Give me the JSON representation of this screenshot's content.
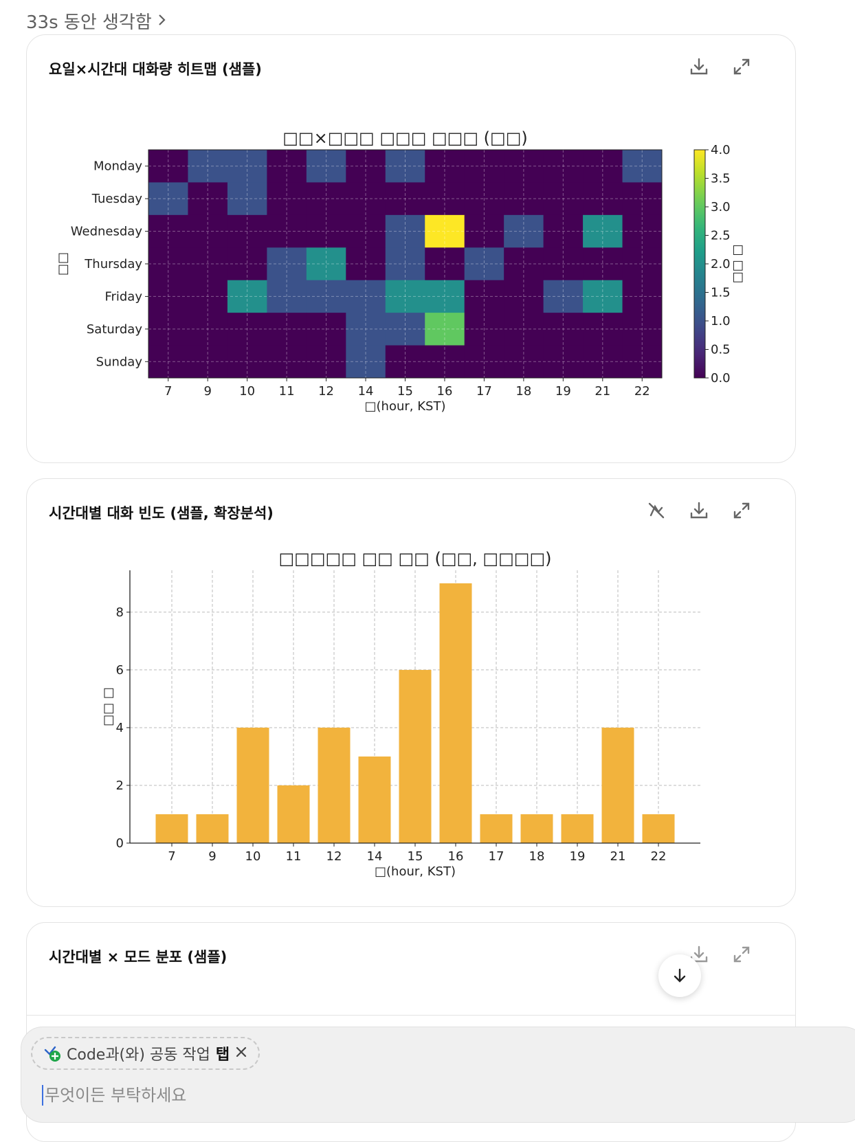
{
  "thought": {
    "label": "33s 동안 생각함"
  },
  "cards": [
    {
      "title": "요일×시간대 대화량 히트맵 (샘플)"
    },
    {
      "title": "시간대별 대화 빈도 (샘플, 확장분석)"
    },
    {
      "title": "시간대별 × 모드 분포 (샘플)"
    }
  ],
  "composer": {
    "chip_prefix": "Code과(와) 공동 작업",
    "chip_bold": "탭",
    "placeholder": "무엇이든 부탁하세요"
  },
  "chart_data": [
    {
      "type": "heatmap",
      "title": "□□×□□□ □□□ □□□ (□□)",
      "xlabel": "□(hour, KST)",
      "ylabel": "□□",
      "colorbar_label": "□ □□",
      "colorbar_ticks": [
        "0.0",
        "0.5",
        "1.0",
        "1.5",
        "2.0",
        "2.5",
        "3.0",
        "3.5",
        "4.0"
      ],
      "colormap": "viridis",
      "vmin": 0,
      "vmax": 4,
      "x": [
        "7",
        "9",
        "10",
        "11",
        "12",
        "14",
        "15",
        "16",
        "17",
        "18",
        "19",
        "21",
        "22"
      ],
      "y": [
        "Monday",
        "Tuesday",
        "Wednesday",
        "Thursday",
        "Friday",
        "Saturday",
        "Sunday"
      ],
      "values": [
        [
          0,
          1,
          1,
          0,
          1,
          0,
          1,
          0,
          0,
          0,
          0,
          0,
          1
        ],
        [
          1,
          0,
          1,
          0,
          0,
          0,
          0,
          0,
          0,
          0,
          0,
          0,
          0
        ],
        [
          0,
          0,
          0,
          0,
          0,
          0,
          1,
          4,
          0,
          1,
          0,
          2,
          0
        ],
        [
          0,
          0,
          0,
          1,
          2,
          0,
          1,
          0,
          1,
          0,
          0,
          0,
          0
        ],
        [
          0,
          0,
          2,
          1,
          1,
          1,
          2,
          2,
          0,
          0,
          1,
          2,
          0
        ],
        [
          0,
          0,
          0,
          0,
          0,
          1,
          1,
          3,
          0,
          0,
          0,
          0,
          0
        ],
        [
          0,
          0,
          0,
          0,
          0,
          1,
          0,
          0,
          0,
          0,
          0,
          0,
          0
        ]
      ],
      "grid": true
    },
    {
      "type": "bar",
      "title": "□□□□□ □□ □□ (□□, □□□□)",
      "xlabel": "□(hour, KST)",
      "ylabel": "□□ □",
      "categories": [
        "7",
        "9",
        "10",
        "11",
        "12",
        "14",
        "15",
        "16",
        "17",
        "18",
        "19",
        "21",
        "22"
      ],
      "values": [
        1,
        1,
        4,
        2,
        4,
        3,
        6,
        9,
        1,
        1,
        1,
        4,
        1
      ],
      "yticks": [
        "0",
        "2",
        "4",
        "6",
        "8"
      ],
      "ylim": [
        0,
        9.45
      ],
      "bar_color": "#f2b33d",
      "grid": true
    }
  ]
}
